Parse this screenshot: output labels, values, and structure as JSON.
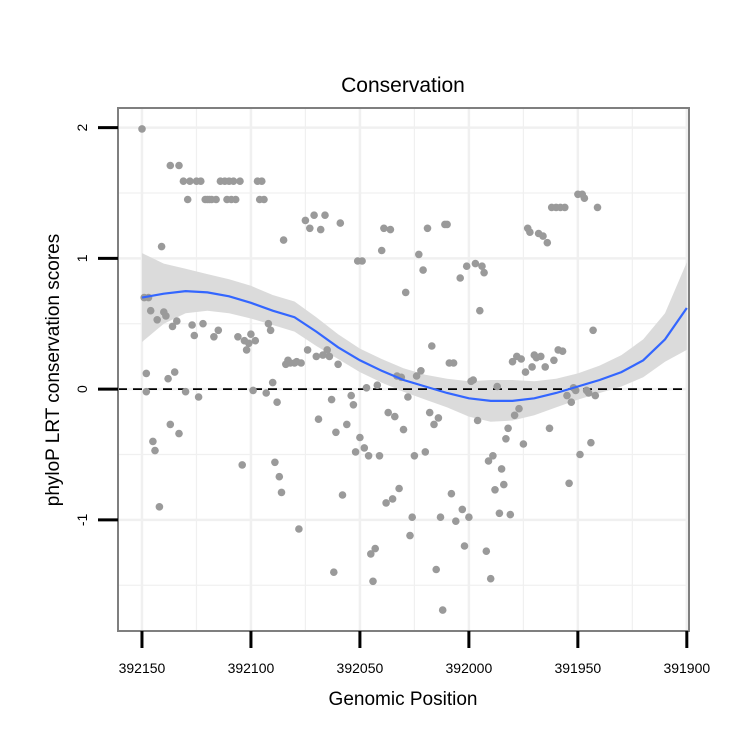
{
  "chart_data": {
    "type": "scatter",
    "title": "Conservation",
    "xlabel": "Genomic Position",
    "ylabel": "phyloP LRT conservation scores",
    "x_reversed": true,
    "xlim": [
      392161,
      391899
    ],
    "ylim": [
      -1.85,
      2.15
    ],
    "x_ticks": [
      392150,
      392100,
      392050,
      392000,
      391950,
      391900
    ],
    "y_ticks": [
      2,
      1,
      0,
      -1
    ],
    "y_tick_labels": [
      "2",
      "1",
      "0",
      "-1"
    ],
    "grid": true,
    "legend": "none",
    "reference_line": {
      "y": 0,
      "style": "dashed",
      "color": "#000000"
    },
    "colors": {
      "points": "#9a9a9a",
      "smooth": "#3366ff",
      "band": "#d9d9d9",
      "grid": "#f0f0f0",
      "panel_border": "#7f7f7f"
    },
    "points": [
      [
        392150,
        1.99
      ],
      [
        392149,
        0.7
      ],
      [
        392147,
        0.7
      ],
      [
        392148,
        -0.02
      ],
      [
        392148,
        0.12
      ],
      [
        392146,
        0.6
      ],
      [
        392145,
        -0.4
      ],
      [
        392144,
        -0.47
      ],
      [
        392143,
        0.53
      ],
      [
        392142,
        -0.9
      ],
      [
        392141,
        1.09
      ],
      [
        392140,
        0.59
      ],
      [
        392139,
        0.56
      ],
      [
        392138,
        0.08
      ],
      [
        392137,
        -0.27
      ],
      [
        392137,
        1.71
      ],
      [
        392136,
        0.48
      ],
      [
        392135,
        0.13
      ],
      [
        392134,
        0.52
      ],
      [
        392133,
        1.71
      ],
      [
        392133,
        -0.34
      ],
      [
        392131,
        1.59
      ],
      [
        392130,
        -0.02
      ],
      [
        392129,
        1.45
      ],
      [
        392128,
        1.59
      ],
      [
        392127,
        0.49
      ],
      [
        392126,
        0.41
      ],
      [
        392125,
        1.59
      ],
      [
        392124,
        -0.06
      ],
      [
        392123,
        1.59
      ],
      [
        392122,
        0.5
      ],
      [
        392121,
        1.45
      ],
      [
        392120,
        1.45
      ],
      [
        392119,
        1.45
      ],
      [
        392118,
        1.45
      ],
      [
        392117,
        0.4
      ],
      [
        392116,
        1.45
      ],
      [
        392115,
        0.45
      ],
      [
        392114,
        1.59
      ],
      [
        392112,
        1.59
      ],
      [
        392111,
        1.45
      ],
      [
        392110,
        1.59
      ],
      [
        392109,
        1.45
      ],
      [
        392108,
        1.59
      ],
      [
        392107,
        1.45
      ],
      [
        392106,
        0.4
      ],
      [
        392105,
        1.59
      ],
      [
        392104,
        -0.58
      ],
      [
        392103,
        0.37
      ],
      [
        392102,
        0.3
      ],
      [
        392101,
        0.35
      ],
      [
        392100,
        0.42
      ],
      [
        392099,
        -0.01
      ],
      [
        392098,
        0.37
      ],
      [
        392097,
        1.59
      ],
      [
        392096,
        1.45
      ],
      [
        392095,
        1.59
      ],
      [
        392094,
        1.45
      ],
      [
        392093,
        -0.03
      ],
      [
        392092,
        0.5
      ],
      [
        392091,
        0.45
      ],
      [
        392090,
        0.05
      ],
      [
        392089,
        -0.56
      ],
      [
        392088,
        -0.1
      ],
      [
        392087,
        -0.67
      ],
      [
        392086,
        -0.79
      ],
      [
        392085,
        1.14
      ],
      [
        392084,
        0.19
      ],
      [
        392083,
        0.22
      ],
      [
        392082,
        0.2
      ],
      [
        392080,
        0.2
      ],
      [
        392079,
        0.21
      ],
      [
        392078,
        -1.07
      ],
      [
        392077,
        0.2
      ],
      [
        392075,
        1.29
      ],
      [
        392074,
        0.3
      ],
      [
        392073,
        1.23
      ],
      [
        392071,
        1.33
      ],
      [
        392070,
        0.25
      ],
      [
        392069,
        -0.23
      ],
      [
        392068,
        1.22
      ],
      [
        392067,
        0.26
      ],
      [
        392066,
        1.33
      ],
      [
        392065,
        0.3
      ],
      [
        392064,
        0.25
      ],
      [
        392063,
        -0.08
      ],
      [
        392062,
        -1.4
      ],
      [
        392061,
        -0.33
      ],
      [
        392060,
        0.19
      ],
      [
        392059,
        1.27
      ],
      [
        392058,
        -0.81
      ],
      [
        392056,
        -0.27
      ],
      [
        392054,
        -0.05
      ],
      [
        392053,
        -0.12
      ],
      [
        392052,
        -0.48
      ],
      [
        392051,
        0.98
      ],
      [
        392050,
        -0.37
      ],
      [
        392049,
        0.98
      ],
      [
        392048,
        -0.45
      ],
      [
        392047,
        0.01
      ],
      [
        392046,
        -0.51
      ],
      [
        392045,
        -1.26
      ],
      [
        392044,
        -1.47
      ],
      [
        392043,
        -1.22
      ],
      [
        392042,
        0.03
      ],
      [
        392041,
        -0.51
      ],
      [
        392040,
        1.06
      ],
      [
        392039,
        1.23
      ],
      [
        392038,
        -0.87
      ],
      [
        392037,
        -0.18
      ],
      [
        392036,
        1.22
      ],
      [
        392035,
        -0.84
      ],
      [
        392034,
        -0.21
      ],
      [
        392033,
        0.1
      ],
      [
        392032,
        -0.76
      ],
      [
        392031,
        0.09
      ],
      [
        392030,
        -0.31
      ],
      [
        392029,
        0.74
      ],
      [
        392028,
        -0.06
      ],
      [
        392027,
        -1.12
      ],
      [
        392026,
        -0.98
      ],
      [
        392025,
        -0.51
      ],
      [
        392024,
        0.1
      ],
      [
        392023,
        1.03
      ],
      [
        392022,
        0.14
      ],
      [
        392021,
        0.91
      ],
      [
        392020,
        -0.48
      ],
      [
        392019,
        1.23
      ],
      [
        392018,
        -0.18
      ],
      [
        392017,
        0.33
      ],
      [
        392016,
        -0.27
      ],
      [
        392015,
        -1.38
      ],
      [
        392014,
        -0.22
      ],
      [
        392013,
        -0.98
      ],
      [
        392012,
        -1.69
      ],
      [
        392011,
        1.26
      ],
      [
        392010,
        1.26
      ],
      [
        392009,
        0.2
      ],
      [
        392008,
        -0.8
      ],
      [
        392007,
        0.2
      ],
      [
        392006,
        -1.01
      ],
      [
        392004,
        0.85
      ],
      [
        392003,
        -0.92
      ],
      [
        392002,
        -1.2
      ],
      [
        392001,
        0.94
      ],
      [
        392000,
        -0.98
      ],
      [
        391999,
        0.06
      ],
      [
        391998,
        0.07
      ],
      [
        391997,
        0.96
      ],
      [
        391996,
        -0.24
      ],
      [
        391995,
        0.6
      ],
      [
        391994,
        0.94
      ],
      [
        391993,
        0.89
      ],
      [
        391992,
        -1.24
      ],
      [
        391991,
        -0.55
      ],
      [
        391990,
        -1.45
      ],
      [
        391989,
        -0.51
      ],
      [
        391988,
        -0.77
      ],
      [
        391987,
        0.02
      ],
      [
        391986,
        -0.95
      ],
      [
        391985,
        -0.61
      ],
      [
        391984,
        -0.73
      ],
      [
        391983,
        -0.38
      ],
      [
        391982,
        -0.3
      ],
      [
        391981,
        -0.96
      ],
      [
        391980,
        0.21
      ],
      [
        391979,
        -0.2
      ],
      [
        391978,
        0.25
      ],
      [
        391977,
        -0.15
      ],
      [
        391976,
        0.23
      ],
      [
        391975,
        -0.42
      ],
      [
        391974,
        0.13
      ],
      [
        391973,
        1.23
      ],
      [
        391972,
        1.2
      ],
      [
        391971,
        0.17
      ],
      [
        391970,
        0.26
      ],
      [
        391969,
        0.24
      ],
      [
        391968,
        1.19
      ],
      [
        391967,
        0.25
      ],
      [
        391966,
        1.17
      ],
      [
        391965,
        0.17
      ],
      [
        391964,
        1.12
      ],
      [
        391963,
        -0.3
      ],
      [
        391962,
        1.39
      ],
      [
        391961,
        0.22
      ],
      [
        391960,
        1.39
      ],
      [
        391959,
        0.3
      ],
      [
        391958,
        1.39
      ],
      [
        391957,
        0.29
      ],
      [
        391956,
        1.39
      ],
      [
        391955,
        -0.05
      ],
      [
        391954,
        -0.72
      ],
      [
        391953,
        -0.1
      ],
      [
        391952,
        0.01
      ],
      [
        391951,
        -0.01
      ],
      [
        391950,
        1.49
      ],
      [
        391949,
        -0.5
      ],
      [
        391948,
        1.49
      ],
      [
        391947,
        1.46
      ],
      [
        391946,
        -0.01
      ],
      [
        391945,
        -0.03
      ],
      [
        391944,
        -0.41
      ],
      [
        391943,
        0.45
      ],
      [
        391942,
        -0.05
      ],
      [
        391941,
        1.39
      ]
    ],
    "smooth": {
      "x": [
        392150,
        392140,
        392130,
        392120,
        392110,
        392100,
        392090,
        392080,
        392070,
        392060,
        392050,
        392040,
        392030,
        392020,
        392010,
        392000,
        391990,
        391980,
        391970,
        391960,
        391950,
        391940,
        391930,
        391920,
        391910,
        391900
      ],
      "y": [
        0.7,
        0.73,
        0.75,
        0.74,
        0.71,
        0.66,
        0.6,
        0.55,
        0.44,
        0.32,
        0.22,
        0.14,
        0.07,
        0.02,
        -0.03,
        -0.07,
        -0.09,
        -0.09,
        -0.07,
        -0.03,
        0.02,
        0.07,
        0.13,
        0.22,
        0.38,
        0.62
      ],
      "lower": [
        0.36,
        0.5,
        0.58,
        0.6,
        0.58,
        0.54,
        0.49,
        0.44,
        0.33,
        0.23,
        0.13,
        0.05,
        -0.02,
        -0.08,
        -0.14,
        -0.21,
        -0.25,
        -0.24,
        -0.2,
        -0.14,
        -0.08,
        -0.03,
        0.02,
        0.09,
        0.21,
        0.3
      ],
      "upper": [
        1.04,
        0.96,
        0.92,
        0.88,
        0.84,
        0.79,
        0.72,
        0.67,
        0.55,
        0.42,
        0.31,
        0.23,
        0.16,
        0.11,
        0.08,
        0.06,
        0.07,
        0.07,
        0.06,
        0.08,
        0.12,
        0.18,
        0.26,
        0.38,
        0.58,
        0.97
      ]
    }
  }
}
